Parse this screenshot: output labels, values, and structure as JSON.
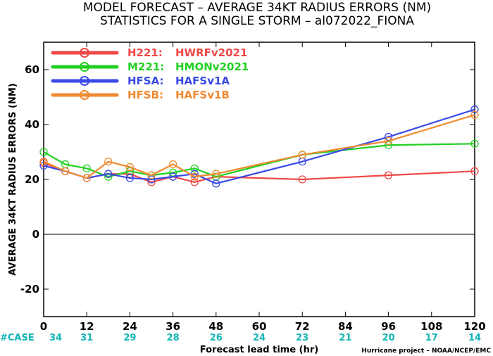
{
  "chart_data": {
    "type": "line",
    "title_line1": "MODEL FORECAST – AVERAGE 34KT RADIUS ERRORS (NM)",
    "title_line2": "STATISTICS FOR A SINGLE STORM – al072022_FIONA",
    "xlabel": "Forecast lead time (hr)",
    "ylabel": "AVERAGE 34KT RADIUS ERRORS (NM)",
    "credit": "Hurricane project – NOAA/NCEP/EMC",
    "xlim": [
      0,
      120
    ],
    "ylim": [
      -30,
      70
    ],
    "x_ticks": [
      0,
      12,
      24,
      36,
      48,
      60,
      72,
      84,
      96,
      108,
      120
    ],
    "y_ticks": [
      -20,
      0,
      20,
      40,
      60
    ],
    "grid": false,
    "legend_position": "top-left",
    "case_label": "#CASE",
    "case_counts": [
      {
        "x": 0,
        "count": "34"
      },
      {
        "x": 12,
        "count": "31"
      },
      {
        "x": 24,
        "count": "29"
      },
      {
        "x": 36,
        "count": "28"
      },
      {
        "x": 48,
        "count": "26"
      },
      {
        "x": 60,
        "count": "24"
      },
      {
        "x": 72,
        "count": "23"
      },
      {
        "x": 84,
        "count": "21"
      },
      {
        "x": 96,
        "count": "20"
      },
      {
        "x": 108,
        "count": "17"
      },
      {
        "x": 120,
        "count": "14"
      }
    ],
    "case_color": "#11b5b5",
    "series": [
      {
        "name": "H221:",
        "desc": "HWRFv2021",
        "color": "#f04848",
        "x": [
          0,
          6,
          12,
          18,
          24,
          30,
          36,
          42,
          48,
          72,
          96,
          120
        ],
        "y": [
          26,
          23,
          20.5,
          22,
          22,
          19,
          21,
          19,
          21,
          20,
          21.5,
          23
        ]
      },
      {
        "name": "M221:",
        "desc": "HMONv2021",
        "color": "#22d022",
        "x": [
          0,
          6,
          12,
          18,
          24,
          30,
          36,
          42,
          48,
          72,
          96,
          120
        ],
        "y": [
          30,
          25.5,
          24,
          21,
          23,
          21.5,
          22.5,
          24,
          21,
          29,
          32.5,
          33
        ]
      },
      {
        "name": "HFSA:",
        "desc": "HAFSv1A",
        "color": "#3a4ae8",
        "x": [
          0,
          6,
          12,
          18,
          24,
          30,
          36,
          42,
          48,
          72,
          96,
          120
        ],
        "y": [
          25,
          23,
          20.5,
          22,
          20.5,
          20,
          21,
          22,
          18.5,
          26.5,
          35.5,
          45.5
        ]
      },
      {
        "name": "HFSB:",
        "desc": "HAFSv1B",
        "color": "#f08a30",
        "x": [
          0,
          6,
          12,
          18,
          24,
          30,
          36,
          42,
          48,
          72,
          96,
          120
        ],
        "y": [
          26.5,
          23,
          20.5,
          26.5,
          24.5,
          21.5,
          25.5,
          21,
          22,
          29,
          34,
          43.5
        ]
      }
    ]
  }
}
